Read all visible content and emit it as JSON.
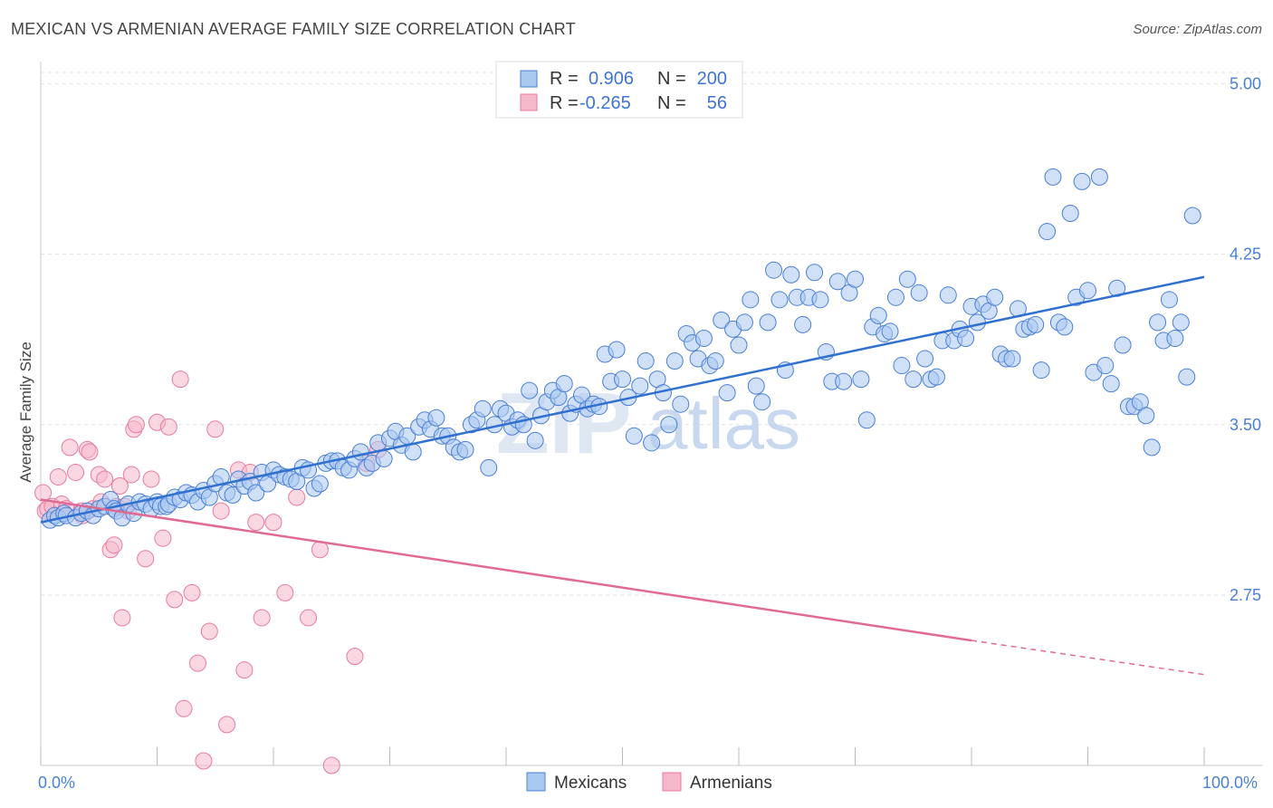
{
  "title": "MEXICAN VS ARMENIAN AVERAGE FAMILY SIZE CORRELATION CHART",
  "source": "Source: ZipAtlas.com",
  "watermark": "ZIP",
  "watermark2": "atlas",
  "colors": {
    "blue": "#4a7fd6",
    "pink": "#e87aa0",
    "blue_fill": "#a9c8f0",
    "pink_fill": "#f5b8cb",
    "trend_blue": "#3070d0",
    "trend_pink": "#e06a94"
  },
  "legend": {
    "rows": [
      {
        "r_label": "R =",
        "r_value": "0.906",
        "n_label": "N =",
        "n_value": "200"
      },
      {
        "r_label": "R =",
        "r_value": "-0.265",
        "n_label": "N =",
        "n_value": "56"
      }
    ]
  },
  "bottom_legend": [
    "Mexicans",
    "Armenians"
  ],
  "chart_data": {
    "type": "scatter",
    "title": "MEXICAN VS ARMENIAN AVERAGE FAMILY SIZE CORRELATION CHART",
    "xlabel": "",
    "ylabel": "Average Family Size",
    "xlim": [
      0,
      100
    ],
    "ylim": [
      2.0,
      5.05
    ],
    "x_tick_labels": [
      "0.0%",
      "100.0%"
    ],
    "y_ticks": [
      2.75,
      3.5,
      4.25,
      5.0
    ],
    "y_tick_labels": [
      "2.75",
      "3.50",
      "4.25",
      "5.00"
    ],
    "grid": true,
    "legend_position": "top-center",
    "series": [
      {
        "name": "Mexicans",
        "trend": {
          "x": [
            0,
            100
          ],
          "y": [
            3.07,
            4.15
          ]
        },
        "points": [
          [
            0.8,
            3.08
          ],
          [
            1.2,
            3.1
          ],
          [
            1.5,
            3.09
          ],
          [
            2.0,
            3.11
          ],
          [
            2.2,
            3.1
          ],
          [
            3.0,
            3.09
          ],
          [
            3.5,
            3.11
          ],
          [
            4,
            3.12
          ],
          [
            4.5,
            3.1
          ],
          [
            5,
            3.13
          ],
          [
            5.5,
            3.14
          ],
          [
            6,
            3.17
          ],
          [
            6.3,
            3.13
          ],
          [
            6.5,
            3.12
          ],
          [
            7,
            3.09
          ],
          [
            7.5,
            3.15
          ],
          [
            8,
            3.11
          ],
          [
            8.5,
            3.16
          ],
          [
            9,
            3.15
          ],
          [
            9.5,
            3.13
          ],
          [
            10,
            3.16
          ],
          [
            10.3,
            3.14
          ],
          [
            10.8,
            3.14
          ],
          [
            11,
            3.15
          ],
          [
            11.5,
            3.18
          ],
          [
            12,
            3.17
          ],
          [
            12.5,
            3.2
          ],
          [
            13,
            3.19
          ],
          [
            13.5,
            3.16
          ],
          [
            14,
            3.21
          ],
          [
            14.5,
            3.18
          ],
          [
            15,
            3.24
          ],
          [
            15.5,
            3.27
          ],
          [
            16,
            3.2
          ],
          [
            16.5,
            3.19
          ],
          [
            17,
            3.26
          ],
          [
            17.5,
            3.23
          ],
          [
            18,
            3.25
          ],
          [
            18.5,
            3.2
          ],
          [
            19,
            3.29
          ],
          [
            19.5,
            3.24
          ],
          [
            20,
            3.3
          ],
          [
            20.5,
            3.28
          ],
          [
            21,
            3.27
          ],
          [
            21.5,
            3.26
          ],
          [
            22,
            3.25
          ],
          [
            22.5,
            3.31
          ],
          [
            23,
            3.3
          ],
          [
            23.5,
            3.22
          ],
          [
            24,
            3.24
          ],
          [
            24.5,
            3.33
          ],
          [
            25,
            3.34
          ],
          [
            25.5,
            3.34
          ],
          [
            26,
            3.31
          ],
          [
            26.5,
            3.3
          ],
          [
            27,
            3.35
          ],
          [
            27.5,
            3.38
          ],
          [
            28,
            3.31
          ],
          [
            28.5,
            3.33
          ],
          [
            29,
            3.42
          ],
          [
            29.5,
            3.35
          ],
          [
            30,
            3.44
          ],
          [
            30.5,
            3.47
          ],
          [
            31,
            3.41
          ],
          [
            31.5,
            3.45
          ],
          [
            32,
            3.38
          ],
          [
            32.5,
            3.49
          ],
          [
            33,
            3.52
          ],
          [
            33.5,
            3.48
          ],
          [
            34,
            3.53
          ],
          [
            34.5,
            3.45
          ],
          [
            35,
            3.45
          ],
          [
            35.5,
            3.4
          ],
          [
            36,
            3.38
          ],
          [
            36.5,
            3.39
          ],
          [
            37,
            3.5
          ],
          [
            37.5,
            3.52
          ],
          [
            38,
            3.57
          ],
          [
            38.5,
            3.31
          ],
          [
            39,
            3.5
          ],
          [
            39.5,
            3.57
          ],
          [
            40,
            3.55
          ],
          [
            40.5,
            3.49
          ],
          [
            41,
            3.52
          ],
          [
            41.5,
            3.5
          ],
          [
            42,
            3.65
          ],
          [
            42.5,
            3.43
          ],
          [
            43,
            3.54
          ],
          [
            43.5,
            3.6
          ],
          [
            44,
            3.65
          ],
          [
            44.5,
            3.62
          ],
          [
            45,
            3.68
          ],
          [
            45.5,
            3.55
          ],
          [
            46,
            3.59
          ],
          [
            46.5,
            3.63
          ],
          [
            47,
            3.57
          ],
          [
            47.5,
            3.59
          ],
          [
            48,
            3.58
          ],
          [
            48.5,
            3.81
          ],
          [
            49,
            3.69
          ],
          [
            49.5,
            3.83
          ],
          [
            50,
            3.7
          ],
          [
            50.5,
            3.62
          ],
          [
            51,
            3.45
          ],
          [
            51.5,
            3.67
          ],
          [
            52,
            3.78
          ],
          [
            52.5,
            3.42
          ],
          [
            53,
            3.7
          ],
          [
            53.5,
            3.64
          ],
          [
            54,
            3.5
          ],
          [
            54.5,
            3.78
          ],
          [
            55,
            3.59
          ],
          [
            55.5,
            3.9
          ],
          [
            56,
            3.86
          ],
          [
            56.5,
            3.79
          ],
          [
            57,
            3.88
          ],
          [
            57.5,
            3.76
          ],
          [
            58,
            3.78
          ],
          [
            58.5,
            3.96
          ],
          [
            59,
            3.64
          ],
          [
            59.5,
            3.92
          ],
          [
            60,
            3.85
          ],
          [
            60.5,
            3.95
          ],
          [
            61,
            4.05
          ],
          [
            61.5,
            3.67
          ],
          [
            62,
            3.6
          ],
          [
            62.5,
            3.95
          ],
          [
            63,
            4.18
          ],
          [
            63.5,
            4.05
          ],
          [
            64,
            3.74
          ],
          [
            64.5,
            4.16
          ],
          [
            65,
            4.06
          ],
          [
            65.5,
            3.94
          ],
          [
            66,
            4.06
          ],
          [
            66.5,
            4.17
          ],
          [
            67,
            4.05
          ],
          [
            67.5,
            3.82
          ],
          [
            68,
            3.69
          ],
          [
            68.5,
            4.13
          ],
          [
            69,
            3.69
          ],
          [
            69.5,
            4.08
          ],
          [
            70,
            4.14
          ],
          [
            70.5,
            3.7
          ],
          [
            71,
            3.52
          ],
          [
            71.5,
            3.93
          ],
          [
            72,
            3.98
          ],
          [
            72.5,
            3.9
          ],
          [
            73,
            3.91
          ],
          [
            73.5,
            4.06
          ],
          [
            74,
            3.76
          ],
          [
            74.5,
            4.14
          ],
          [
            75,
            3.7
          ],
          [
            75.5,
            4.08
          ],
          [
            76,
            3.79
          ],
          [
            76.5,
            3.7
          ],
          [
            77,
            3.71
          ],
          [
            77.5,
            3.87
          ],
          [
            78,
            4.07
          ],
          [
            78.5,
            3.87
          ],
          [
            79,
            3.92
          ],
          [
            79.5,
            3.88
          ],
          [
            80,
            4.02
          ],
          [
            80.5,
            3.95
          ],
          [
            81,
            4.03
          ],
          [
            81.5,
            4.0
          ],
          [
            82,
            4.06
          ],
          [
            82.5,
            3.81
          ],
          [
            83,
            3.79
          ],
          [
            83.5,
            3.79
          ],
          [
            84,
            4.01
          ],
          [
            84.5,
            3.92
          ],
          [
            85,
            3.93
          ],
          [
            85.5,
            3.94
          ],
          [
            86,
            3.74
          ],
          [
            86.5,
            4.35
          ],
          [
            87,
            4.59
          ],
          [
            87.5,
            3.95
          ],
          [
            88,
            3.93
          ],
          [
            88.5,
            4.43
          ],
          [
            89,
            4.06
          ],
          [
            89.5,
            4.57
          ],
          [
            90,
            4.09
          ],
          [
            90.5,
            3.73
          ],
          [
            91,
            4.59
          ],
          [
            91.5,
            3.76
          ],
          [
            92,
            3.68
          ],
          [
            92.5,
            4.1
          ],
          [
            93,
            3.85
          ],
          [
            93.5,
            3.58
          ],
          [
            94,
            3.58
          ],
          [
            94.5,
            3.6
          ],
          [
            95,
            3.54
          ],
          [
            95.5,
            3.4
          ],
          [
            96,
            3.95
          ],
          [
            96.5,
            3.87
          ],
          [
            97,
            4.05
          ],
          [
            97.5,
            3.88
          ],
          [
            98,
            3.95
          ],
          [
            98.5,
            3.71
          ],
          [
            99,
            4.42
          ]
        ]
      },
      {
        "name": "Armenians",
        "trend": {
          "x": [
            0,
            80
          ],
          "y": [
            3.17,
            2.55
          ]
        },
        "trend_dashed": {
          "x": [
            80,
            100
          ],
          "y": [
            2.55,
            2.4
          ]
        },
        "points": [
          [
            0.2,
            3.2
          ],
          [
            0.4,
            3.12
          ],
          [
            0.6,
            3.13
          ],
          [
            1.0,
            3.14
          ],
          [
            1.5,
            3.27
          ],
          [
            1.8,
            3.15
          ],
          [
            2.2,
            3.13
          ],
          [
            2.5,
            3.4
          ],
          [
            3.0,
            3.29
          ],
          [
            3.5,
            3.12
          ],
          [
            3.6,
            3.1
          ],
          [
            4.0,
            3.39
          ],
          [
            4.2,
            3.38
          ],
          [
            4.5,
            3.13
          ],
          [
            5.0,
            3.28
          ],
          [
            5.2,
            3.16
          ],
          [
            5.5,
            3.26
          ],
          [
            6.0,
            2.95
          ],
          [
            6.3,
            2.97
          ],
          [
            6.5,
            3.14
          ],
          [
            6.8,
            3.23
          ],
          [
            7.0,
            2.65
          ],
          [
            7.2,
            3.14
          ],
          [
            7.5,
            3.12
          ],
          [
            7.8,
            3.28
          ],
          [
            8.0,
            3.48
          ],
          [
            8.2,
            3.5
          ],
          [
            9.0,
            2.91
          ],
          [
            9.5,
            3.26
          ],
          [
            10.0,
            3.51
          ],
          [
            10.5,
            3.0
          ],
          [
            11.0,
            3.49
          ],
          [
            11.5,
            2.73
          ],
          [
            12.0,
            3.7
          ],
          [
            12.3,
            2.25
          ],
          [
            13.0,
            2.76
          ],
          [
            13.5,
            2.45
          ],
          [
            14.0,
            2.02
          ],
          [
            14.5,
            2.59
          ],
          [
            15.0,
            3.48
          ],
          [
            15.5,
            3.12
          ],
          [
            16.0,
            2.18
          ],
          [
            17.0,
            3.3
          ],
          [
            17.5,
            2.42
          ],
          [
            18.0,
            3.29
          ],
          [
            18.5,
            3.07
          ],
          [
            19.0,
            2.65
          ],
          [
            20.0,
            3.07
          ],
          [
            21.0,
            2.76
          ],
          [
            22.0,
            3.18
          ],
          [
            23.0,
            2.65
          ],
          [
            24.0,
            2.95
          ],
          [
            25.0,
            2.0
          ],
          [
            27.0,
            2.48
          ],
          [
            28.0,
            3.33
          ],
          [
            29.0,
            3.39
          ]
        ]
      }
    ]
  }
}
